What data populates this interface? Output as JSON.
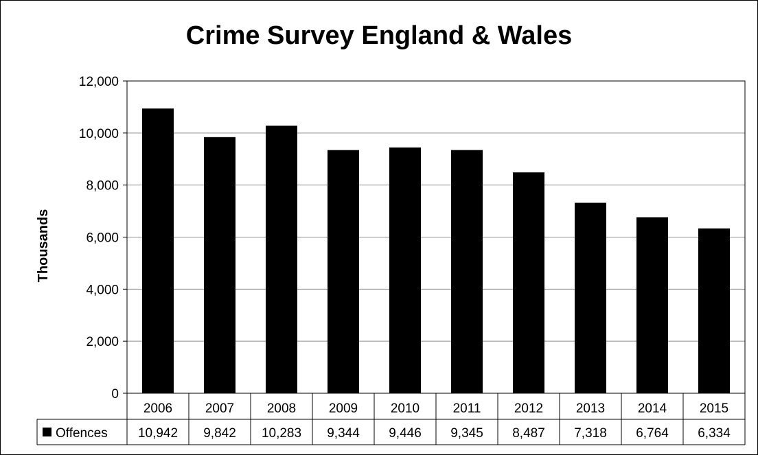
{
  "chart_data": {
    "type": "bar",
    "title": "Crime Survey England & Wales",
    "xlabel": "",
    "ylabel": "Thousands",
    "categories": [
      "2006",
      "2007",
      "2008",
      "2009",
      "2010",
      "2011",
      "2012",
      "2013",
      "2014",
      "2015"
    ],
    "series": [
      {
        "name": "Offences",
        "color": "#000000",
        "values": [
          10942,
          9842,
          10283,
          9344,
          9446,
          9345,
          8487,
          7318,
          6764,
          6334
        ],
        "value_labels": [
          "10,942",
          "9,842",
          "10,283",
          "9,344",
          "9,446",
          "9,345",
          "8,487",
          "7,318",
          "6,764",
          "6,334"
        ]
      }
    ],
    "ylim": [
      0,
      12000
    ],
    "yticks": [
      0,
      2000,
      4000,
      6000,
      8000,
      10000,
      12000
    ],
    "ytick_labels": [
      "0",
      "2,000",
      "4,000",
      "6,000",
      "8,000",
      "10,000",
      "12,000"
    ],
    "grid": true,
    "legend": "data-table"
  }
}
